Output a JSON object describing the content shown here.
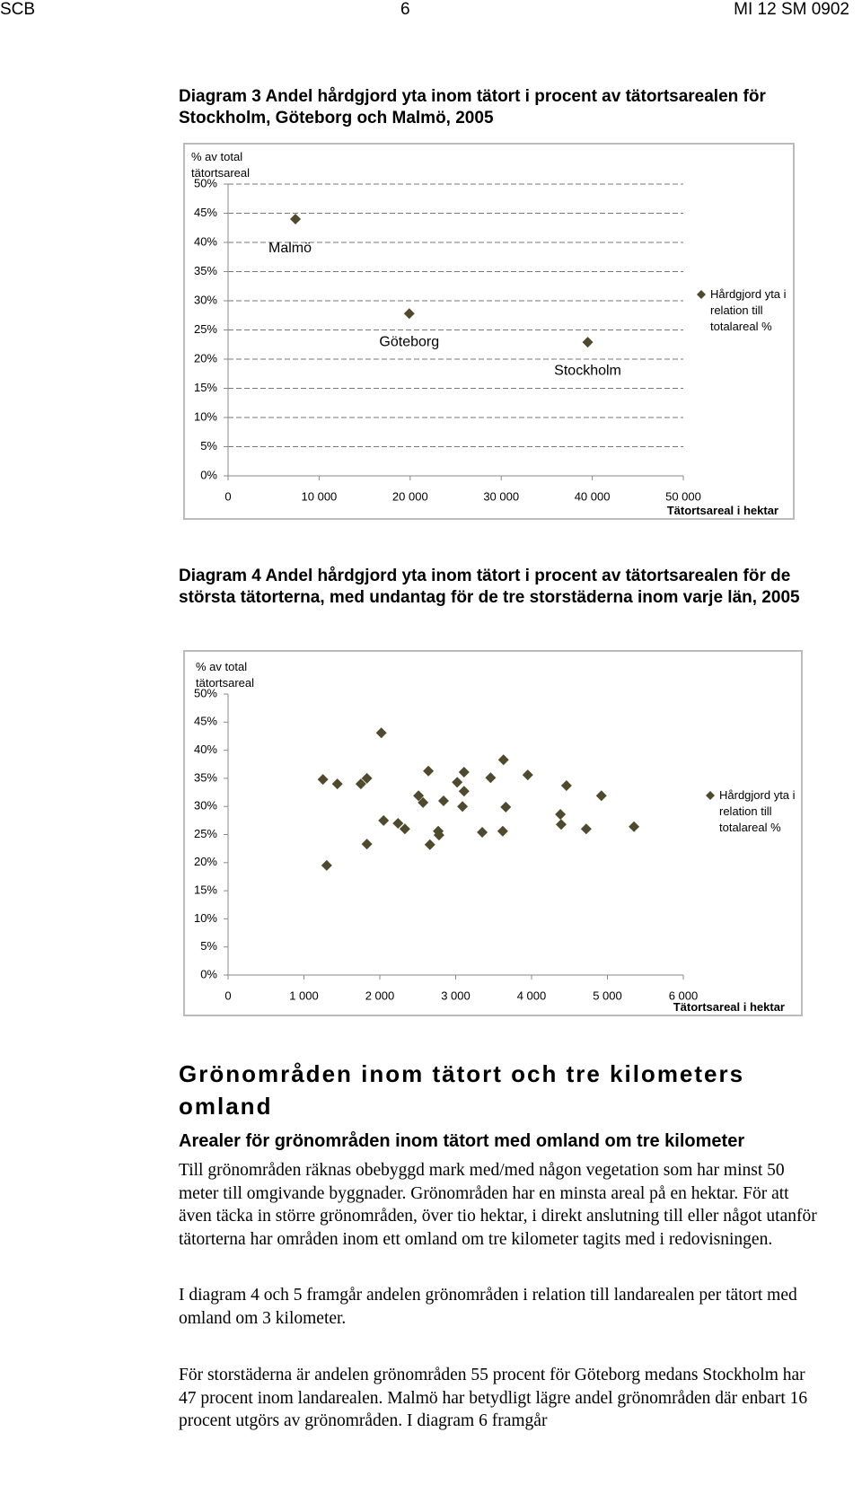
{
  "header": {
    "left": "SCB",
    "page": "6",
    "right": "MI 12 SM 0902"
  },
  "diagrams": [
    {
      "title": "Diagram 3 Andel hårdgjord yta inom tätort i procent av tätortsarealen för Stockholm, Göteborg och Malmö, 2005",
      "chart": {
        "type": "scatter",
        "y_label": "% av total tätortsareal",
        "x_label": "Tätortsareal  i hektar",
        "series": [
          {
            "name": "Hårdgjord yta i relation till totalareal %",
            "color": "#4f4a2e",
            "x": [
              7400,
              19900,
              39500
            ],
            "values": [
              44,
              27.8,
              22.9
            ]
          }
        ],
        "annotations": [
          "Malmö",
          "Göteborg",
          "Stockholm"
        ],
        "xlim": [
          0,
          50000
        ],
        "ylim": [
          0,
          50
        ],
        "grid": true,
        "xticks": [
          0,
          {
            "value": 10000,
            "label": "10 000"
          },
          {
            "value": 20000,
            "label": "20 000"
          },
          {
            "value": 30000,
            "label": "30 000"
          },
          {
            "value": 40000,
            "label": "40 000"
          },
          {
            "value": 50000,
            "label": "50 000"
          }
        ],
        "yticks": [
          {
            "value": 0,
            "label": "0%"
          },
          {
            "value": 5,
            "label": "5%"
          },
          {
            "value": 10,
            "label": "10%"
          },
          {
            "value": 15,
            "label": "15%"
          },
          {
            "value": 20,
            "label": "20%"
          },
          {
            "value": 25,
            "label": "25%"
          },
          {
            "value": 30,
            "label": "30%"
          },
          {
            "value": 35,
            "label": "35%"
          },
          {
            "value": 40,
            "label": "40%"
          },
          {
            "value": 45,
            "label": "45%"
          },
          {
            "value": 50,
            "label": "50%"
          }
        ]
      }
    },
    {
      "title": "Diagram 4 Andel hårdgjord yta inom tätort i procent av tätortsarealen för de största tätorterna, med undantag för de tre storstäderna inom varje län, 2005",
      "chart": {
        "type": "scatter",
        "y_label": "% av total tätortsareal",
        "x_label": "Tätortsareal i hektar",
        "series": [
          {
            "name": "Hårdgjord yta i relation till totalareal %",
            "color": "#4f4a2e",
            "x": [
              1250,
              1440,
              1750,
              1830,
              2020,
              1300,
              1830,
              2050,
              2240,
              2330,
              2510,
              2570,
              2640,
              2660,
              2770,
              2780,
              2840,
              3020,
              3090,
              3110,
              3110,
              3350,
              3460,
              3620,
              3630,
              3660,
              3950,
              4380,
              4390,
              4460,
              4720,
              4920,
              5350
            ],
            "values": [
              34.8,
              34.0,
              34.0,
              35.0,
              43.1,
              19.5,
              23.3,
              27.5,
              27.0,
              26.0,
              31.9,
              30.7,
              36.3,
              23.2,
              25.6,
              24.9,
              31.0,
              34.3,
              30.0,
              36.1,
              32.7,
              25.4,
              35.1,
              25.6,
              38.3,
              29.9,
              35.6,
              28.6,
              26.8,
              33.7,
              26.0,
              31.9,
              26.4
            ]
          }
        ],
        "xlim": [
          0,
          6000
        ],
        "ylim": [
          0,
          50
        ],
        "grid": false,
        "xticks": [
          0,
          {
            "value": 1000,
            "label": "1 000"
          },
          {
            "value": 2000,
            "label": "2 000"
          },
          {
            "value": 3000,
            "label": "3 000"
          },
          {
            "value": 4000,
            "label": "4 000"
          },
          {
            "value": 5000,
            "label": "5 000"
          },
          {
            "value": 6000,
            "label": "6 000"
          }
        ],
        "yticks": [
          {
            "value": 0,
            "label": "0%"
          },
          {
            "value": 5,
            "label": "5%"
          },
          {
            "value": 10,
            "label": "10%"
          },
          {
            "value": 15,
            "label": "15%"
          },
          {
            "value": 20,
            "label": "20%"
          },
          {
            "value": 25,
            "label": "25%"
          },
          {
            "value": 30,
            "label": "30%"
          },
          {
            "value": 35,
            "label": "35%"
          },
          {
            "value": 40,
            "label": "40%"
          },
          {
            "value": 45,
            "label": "45%"
          },
          {
            "value": 50,
            "label": "50%"
          }
        ]
      }
    }
  ],
  "section": {
    "heading": "Grönområden inom tätort och tre kilometers omland",
    "subheading": "Arealer för grönområden inom tätort med omland om tre kilometer",
    "paragraphs": [
      "Till grönområden räknas obebyggd mark med/med någon vegetation som har minst 50 meter till omgivande byggnader. Grönområden har en minsta areal på en hektar. För att även täcka in större grönområden, över tio hektar, i direkt anslutning till eller något utanför tätorterna har områden inom ett omland om tre kilometer tagits med i redovisningen.",
      "I diagram 4 och 5 framgår andelen grönområden i relation till landarealen per tätort med omland om 3 kilometer.",
      "För storstäderna är andelen grönområden 55 procent för Göteborg medans Stockholm har 47 procent inom landarealen. Malmö har betydligt lägre andel grönområden där enbart 16 procent utgörs av grönområden. I diagram 6 framgår"
    ]
  }
}
